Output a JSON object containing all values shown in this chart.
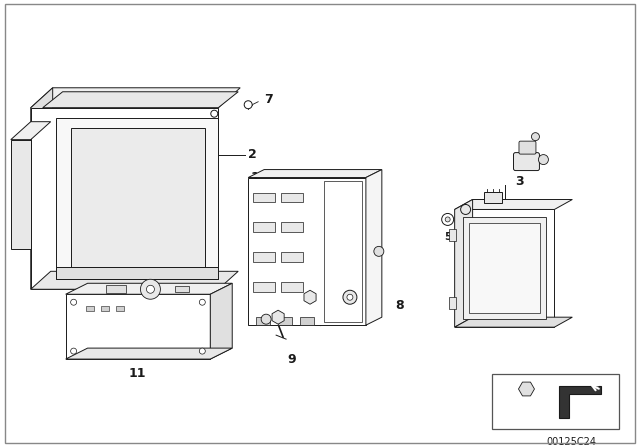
{
  "bg_color": "#ffffff",
  "border_color": "#aaaaaa",
  "line_color": "#1a1a1a",
  "catalog_number": "00125C24",
  "fig_width": 6.4,
  "fig_height": 4.48,
  "dpi": 100
}
